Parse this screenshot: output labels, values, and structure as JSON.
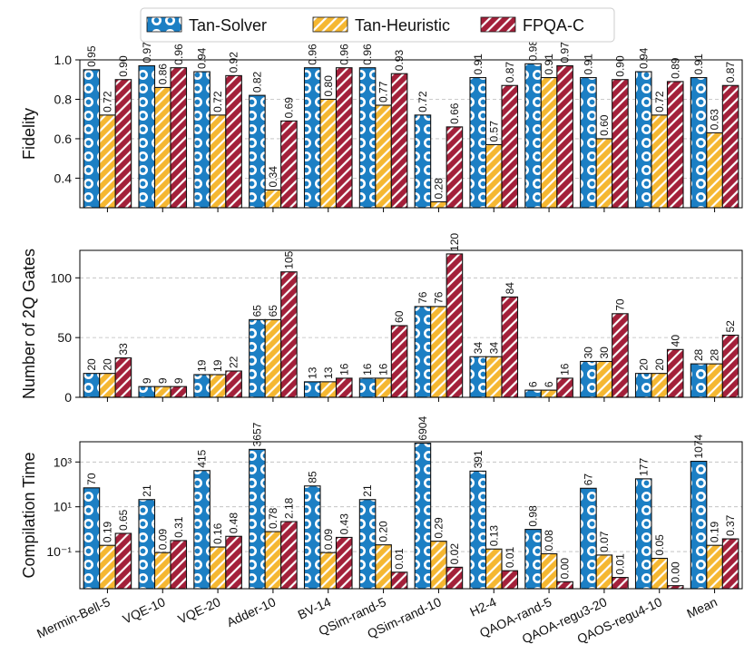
{
  "chart_data": [
    {
      "type": "bar",
      "ylabel": "Fidelity",
      "ylim": [
        0.25,
        1.0
      ],
      "yticks": [
        0.4,
        0.6,
        0.8,
        {
          "value": 1.0,
          "label": "1.0"
        }
      ],
      "grid": true,
      "legend": "top",
      "series": [
        {
          "name": "Tan-Solver",
          "color": "#1c7fc4",
          "hatch": "o",
          "values": [
            0.95,
            0.97,
            0.94,
            0.82,
            0.96,
            0.96,
            0.72,
            0.91,
            0.98,
            0.91,
            0.94,
            0.91
          ],
          "value_labels": [
            "0.95",
            "0.97",
            "0.94",
            "0.82",
            "0.96",
            "0.96",
            "0.72",
            "0.91",
            "0.98",
            "0.91",
            "0.94",
            "0.91"
          ]
        },
        {
          "name": "Tan-Heuristic",
          "color": "#f5b731",
          "hatch": "//",
          "values": [
            0.72,
            0.86,
            0.72,
            0.34,
            0.8,
            0.77,
            0.28,
            0.57,
            0.91,
            0.6,
            0.72,
            0.63
          ],
          "value_labels": [
            "0.72",
            "0.86",
            "0.72",
            "0.34",
            "0.80",
            "0.77",
            "0.28",
            "0.57",
            "0.91",
            "0.60",
            "0.72",
            "0.63"
          ]
        },
        {
          "name": "FPQA-C",
          "color": "#a3203a",
          "hatch": "//",
          "values": [
            0.9,
            0.96,
            0.92,
            0.69,
            0.96,
            0.93,
            0.66,
            0.87,
            0.97,
            0.9,
            0.89,
            0.87
          ],
          "value_labels": [
            "0.90",
            "0.96",
            "0.92",
            "0.69",
            "0.96",
            "0.93",
            "0.66",
            "0.87",
            "0.97",
            "0.90",
            "0.89",
            "0.87"
          ]
        }
      ]
    },
    {
      "type": "bar",
      "ylabel": "Number of 2Q Gates",
      "ylim": [
        0,
        123
      ],
      "yticks": [
        0,
        50,
        100
      ],
      "grid": true,
      "series": [
        {
          "name": "Tan-Solver",
          "color": "#1c7fc4",
          "hatch": "o",
          "values": [
            20,
            9,
            19,
            65,
            13,
            16,
            76,
            34,
            6,
            30,
            20,
            28
          ]
        },
        {
          "name": "Tan-Heuristic",
          "color": "#f5b731",
          "hatch": "//",
          "values": [
            20,
            9,
            19,
            65,
            13,
            16,
            76,
            34,
            6,
            30,
            20,
            28
          ]
        },
        {
          "name": "FPQA-C",
          "color": "#a3203a",
          "hatch": "//",
          "values": [
            33,
            9,
            22,
            105,
            16,
            60,
            120,
            84,
            16,
            70,
            40,
            52
          ]
        }
      ]
    },
    {
      "type": "bar",
      "ylabel": "Compilation Time",
      "log_scale": true,
      "ylim": [
        0.0022,
        8000
      ],
      "yticks": [
        {
          "value": 0.1,
          "label": "10⁻¹"
        },
        {
          "value": 10,
          "label": "10¹"
        },
        {
          "value": 1000,
          "label": "10³"
        }
      ],
      "grid": true,
      "categories": [
        "Mermin-Bell-5",
        "VQE-10",
        "VQE-20",
        "Adder-10",
        "BV-14",
        "QSim-rand-5",
        "QSim-rand-10",
        "H2-4",
        "QAOA-rand-5",
        "QAOA-regu3-20",
        "QAOS-regu4-10",
        "Mean"
      ],
      "series": [
        {
          "name": "Tan-Solver",
          "color": "#1c7fc4",
          "hatch": "o",
          "values": [
            70,
            21,
            415,
            3657,
            85,
            21,
            6904,
            391,
            0.98,
            67,
            177,
            1074
          ],
          "value_labels": [
            "70",
            "21",
            "415",
            "3657",
            "85",
            "21",
            "6904",
            "391",
            "0.98",
            "67",
            "177",
            "1074"
          ]
        },
        {
          "name": "Tan-Heuristic",
          "color": "#f5b731",
          "hatch": "//",
          "values": [
            0.19,
            0.09,
            0.16,
            0.78,
            0.09,
            0.2,
            0.29,
            0.13,
            0.08,
            0.07,
            0.05,
            0.19
          ],
          "value_labels": [
            "0.19",
            "0.09",
            "0.16",
            "0.78",
            "0.09",
            "0.20",
            "0.29",
            "0.13",
            "0.08",
            "0.07",
            "0.05",
            "0.19"
          ]
        },
        {
          "name": "FPQA-C",
          "color": "#a3203a",
          "hatch": "//",
          "values": [
            0.65,
            0.31,
            0.48,
            2.18,
            0.43,
            0.012,
            0.02,
            0.014,
            0.0045,
            0.007,
            0.003,
            0.37
          ],
          "value_labels": [
            "0.65",
            "0.31",
            "0.48",
            "2.18",
            "0.43",
            "0.01",
            "0.02",
            "0.01",
            "0.00",
            "0.01",
            "0.00",
            "0.37"
          ]
        }
      ]
    }
  ]
}
